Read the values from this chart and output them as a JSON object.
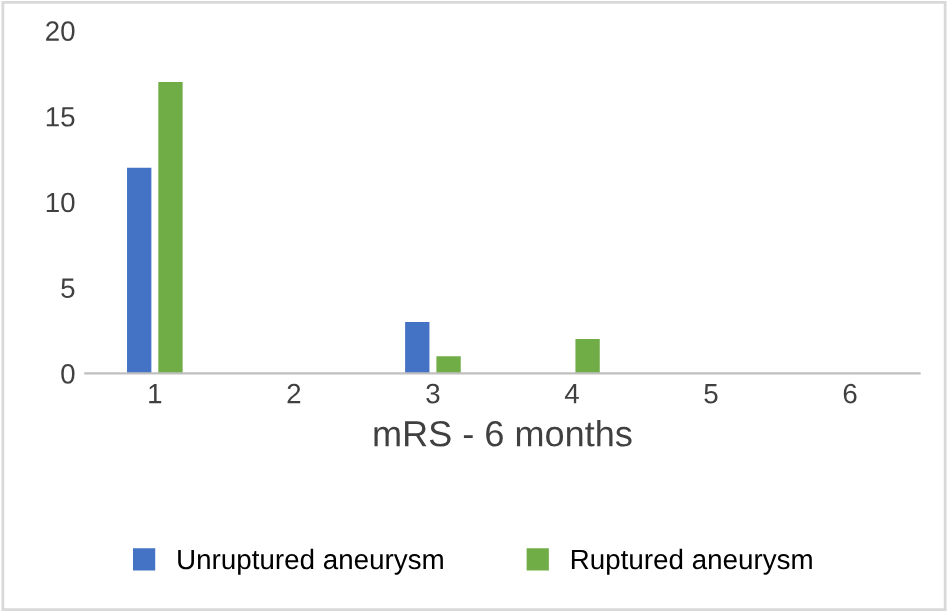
{
  "chart_data": {
    "type": "bar",
    "xlabel": "mRS - 6 months",
    "categories": [
      "1",
      "2",
      "3",
      "4",
      "5",
      "6"
    ],
    "series": [
      {
        "name": "Unruptured aneurysm",
        "color": "#4472c4",
        "values": [
          12,
          0,
          3,
          0,
          0,
          0
        ]
      },
      {
        "name": "Ruptured aneurysm",
        "color": "#70ad47",
        "values": [
          17,
          0,
          1,
          2,
          0,
          0
        ]
      }
    ],
    "ylim": [
      0,
      20
    ],
    "yticks": [
      0,
      5,
      10,
      15,
      20
    ],
    "grid": false,
    "legend": "bottom"
  }
}
